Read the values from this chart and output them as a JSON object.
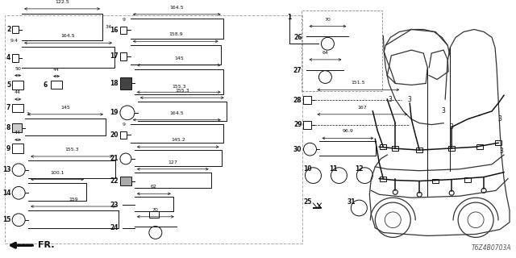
{
  "bg_color": "#ffffff",
  "diagram_code": "T6Z4B0703A",
  "black": "#111111",
  "gray": "#888888",
  "fs_num": 5.5,
  "fs_dim": 4.5,
  "lw": 0.7
}
